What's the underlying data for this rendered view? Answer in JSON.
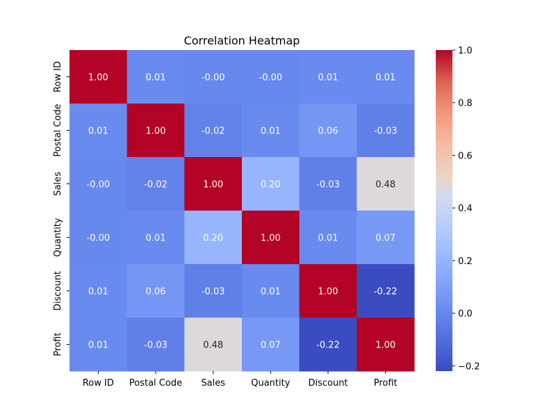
{
  "chart_data": {
    "type": "heatmap",
    "title": "Correlation Heatmap",
    "xlabel": "",
    "ylabel": "",
    "x_categories": [
      "Row ID",
      "Postal Code",
      "Sales",
      "Quantity",
      "Discount",
      "Profit"
    ],
    "y_categories": [
      "Row ID",
      "Postal Code",
      "Sales",
      "Quantity",
      "Discount",
      "Profit"
    ],
    "values": [
      [
        1.0,
        0.01,
        -0.0,
        -0.0,
        0.01,
        0.01
      ],
      [
        0.01,
        1.0,
        -0.02,
        0.01,
        0.06,
        -0.03
      ],
      [
        -0.0,
        -0.02,
        1.0,
        0.2,
        -0.03,
        0.48
      ],
      [
        -0.0,
        0.01,
        0.2,
        1.0,
        0.01,
        0.07
      ],
      [
        0.01,
        0.06,
        -0.03,
        0.01,
        1.0,
        -0.22
      ],
      [
        0.01,
        -0.03,
        0.48,
        0.07,
        -0.22,
        1.0
      ]
    ],
    "annotations": [
      [
        "1.00",
        "0.01",
        "-0.00",
        "-0.00",
        "0.01",
        "0.01"
      ],
      [
        "0.01",
        "1.00",
        "-0.02",
        "0.01",
        "0.06",
        "-0.03"
      ],
      [
        "-0.00",
        "-0.02",
        "1.00",
        "0.20",
        "-0.03",
        "0.48"
      ],
      [
        "-0.00",
        "0.01",
        "0.20",
        "1.00",
        "0.01",
        "0.07"
      ],
      [
        "0.01",
        "0.06",
        "-0.03",
        "0.01",
        "1.00",
        "-0.22"
      ],
      [
        "0.01",
        "-0.03",
        "0.48",
        "0.07",
        "-0.22",
        "1.00"
      ]
    ],
    "colormap": "coolwarm",
    "colorbar": {
      "vmin": -0.22,
      "vmax": 1.0,
      "ticks": [
        -0.2,
        0.0,
        0.2,
        0.4,
        0.6,
        0.8,
        1.0
      ],
      "tick_labels": [
        "−0.2",
        "0.0",
        "0.2",
        "0.4",
        "0.6",
        "0.8",
        "1.0"
      ]
    },
    "grid": false,
    "legend": "colorbar-right"
  }
}
